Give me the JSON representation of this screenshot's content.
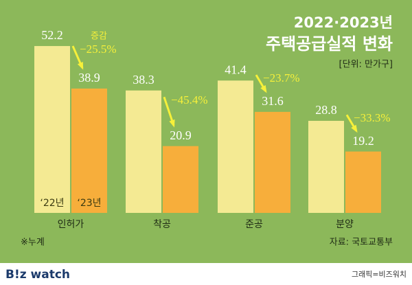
{
  "chart_data": {
    "type": "bar",
    "title": "2022·2023년",
    "subtitle": "주택공급실적 변화",
    "unit": "[단위: 만가구]",
    "categories": [
      "인허가",
      "착공",
      "준공",
      "분양"
    ],
    "series": [
      {
        "name": "‘22년",
        "color": "#f4ea93",
        "values": [
          52.2,
          38.3,
          41.4,
          28.8
        ]
      },
      {
        "name": "‘23년",
        "color": "#f7ae3b",
        "values": [
          38.9,
          20.9,
          31.6,
          19.2
        ]
      }
    ],
    "changes": {
      "label": "증감",
      "color": "#f6f03a",
      "values": [
        -25.5,
        -45.4,
        -23.7,
        -33.3
      ],
      "value_labels": [
        "−25.5%",
        "−45.4%",
        "−23.7%",
        "−33.3%"
      ]
    },
    "ylim": [
      0,
      55
    ],
    "note": "※누계",
    "source": "자료: 국토교통부"
  },
  "footer": {
    "logo": "B!z watch",
    "credit": "그래픽=비즈워치"
  }
}
